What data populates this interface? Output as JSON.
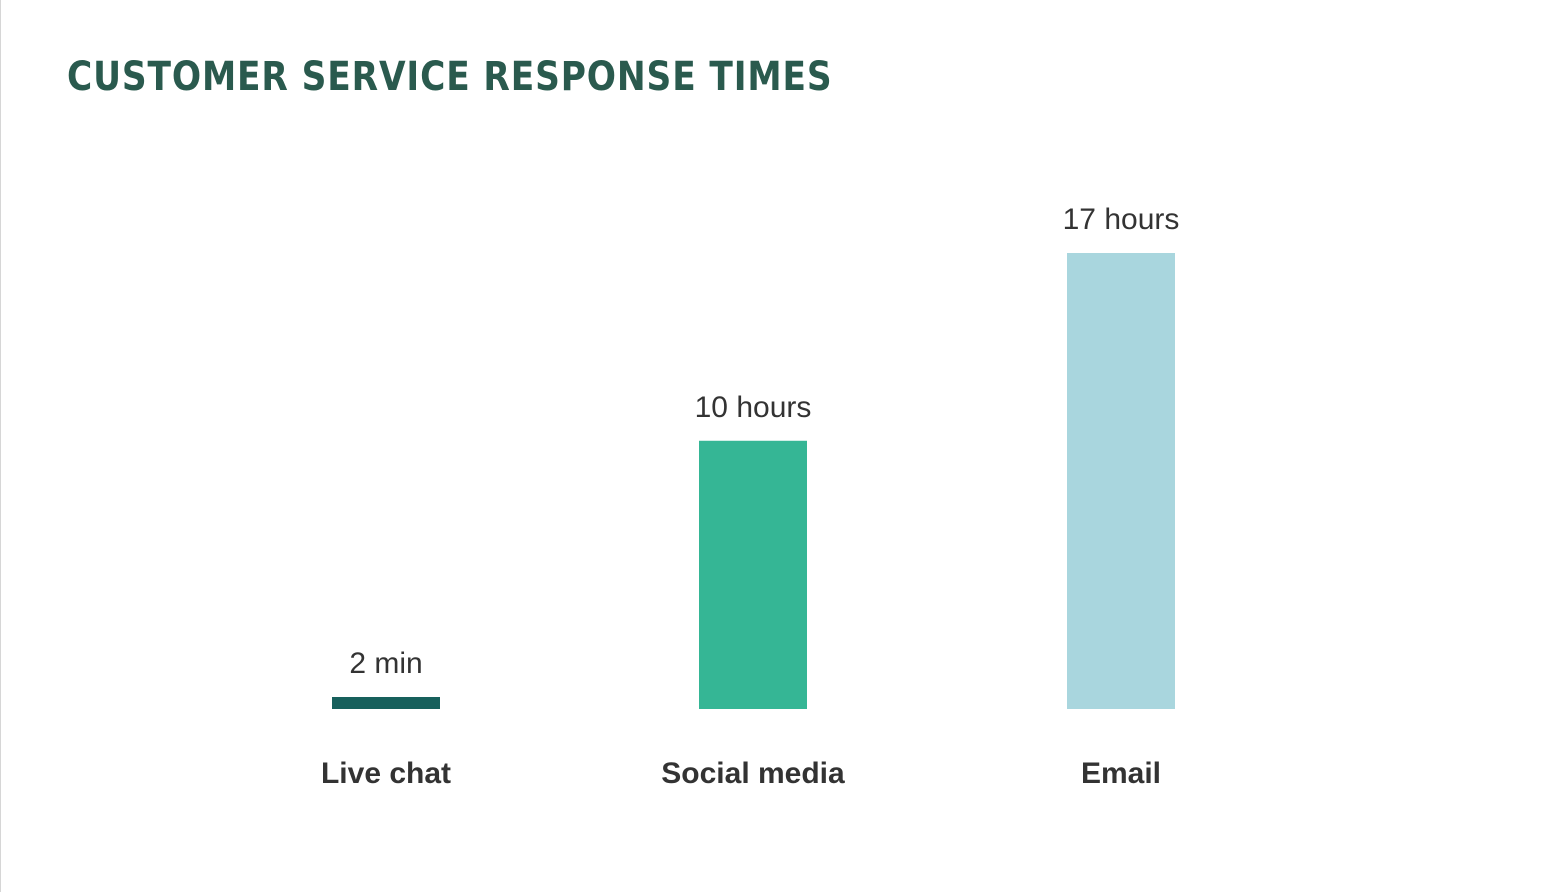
{
  "chart_data": {
    "type": "bar",
    "title": "CUSTOMER SERVICE RESPONSE TIMES",
    "categories": [
      "Live chat",
      "Social media",
      "Email"
    ],
    "values_hours": [
      0.0333,
      10,
      17
    ],
    "data_labels": [
      "2 min",
      "10 hours",
      "17 hours"
    ],
    "colors": [
      "#17605c",
      "#35b695",
      "#a9d6de"
    ],
    "ylim": [
      0,
      17
    ],
    "grid": false,
    "legend": "none"
  }
}
